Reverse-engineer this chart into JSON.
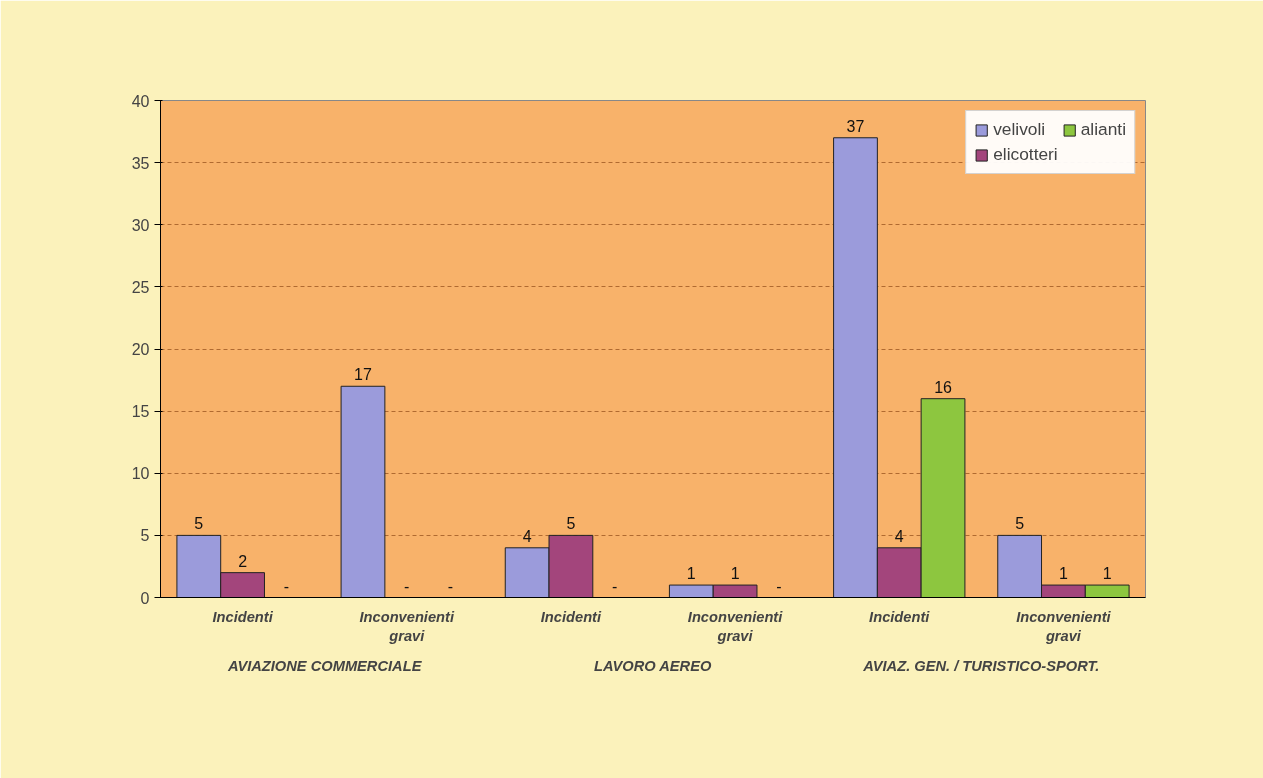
{
  "chart_data": {
    "type": "bar",
    "categories": [
      "Incidenti",
      "Inconvenienti gravi",
      "Incidenti",
      "Inconvenienti gravi",
      "Incidenti",
      "Inconvenienti gravi"
    ],
    "series": [
      {
        "name": "velivoli",
        "color": "#9b9bdb",
        "values": [
          5,
          17,
          4,
          1,
          37,
          5
        ],
        "value_labels": [
          "5",
          "17",
          "4",
          "1",
          "37",
          "5"
        ]
      },
      {
        "name": "elicotteri",
        "color": "#a3457c",
        "values": [
          2,
          null,
          5,
          1,
          4,
          1
        ],
        "value_labels": [
          "2",
          "-",
          "5",
          "1",
          "4",
          "1"
        ]
      },
      {
        "name": "alianti",
        "color": "#8dc63f",
        "values": [
          null,
          null,
          null,
          null,
          16,
          1
        ],
        "value_labels": [
          "-",
          "-",
          "-",
          "-",
          "16",
          "1"
        ]
      }
    ],
    "annotations": [
      "AVIAZIONE COMMERCIALE",
      "LAVORO AEREO",
      "AVIAZ. GEN. / TURISTICO-SPORT."
    ],
    "ylim": [
      0,
      40
    ],
    "yticks": [
      0,
      5,
      10,
      15,
      20,
      25,
      30,
      35,
      40
    ],
    "grid": "y",
    "legend": "top right"
  }
}
